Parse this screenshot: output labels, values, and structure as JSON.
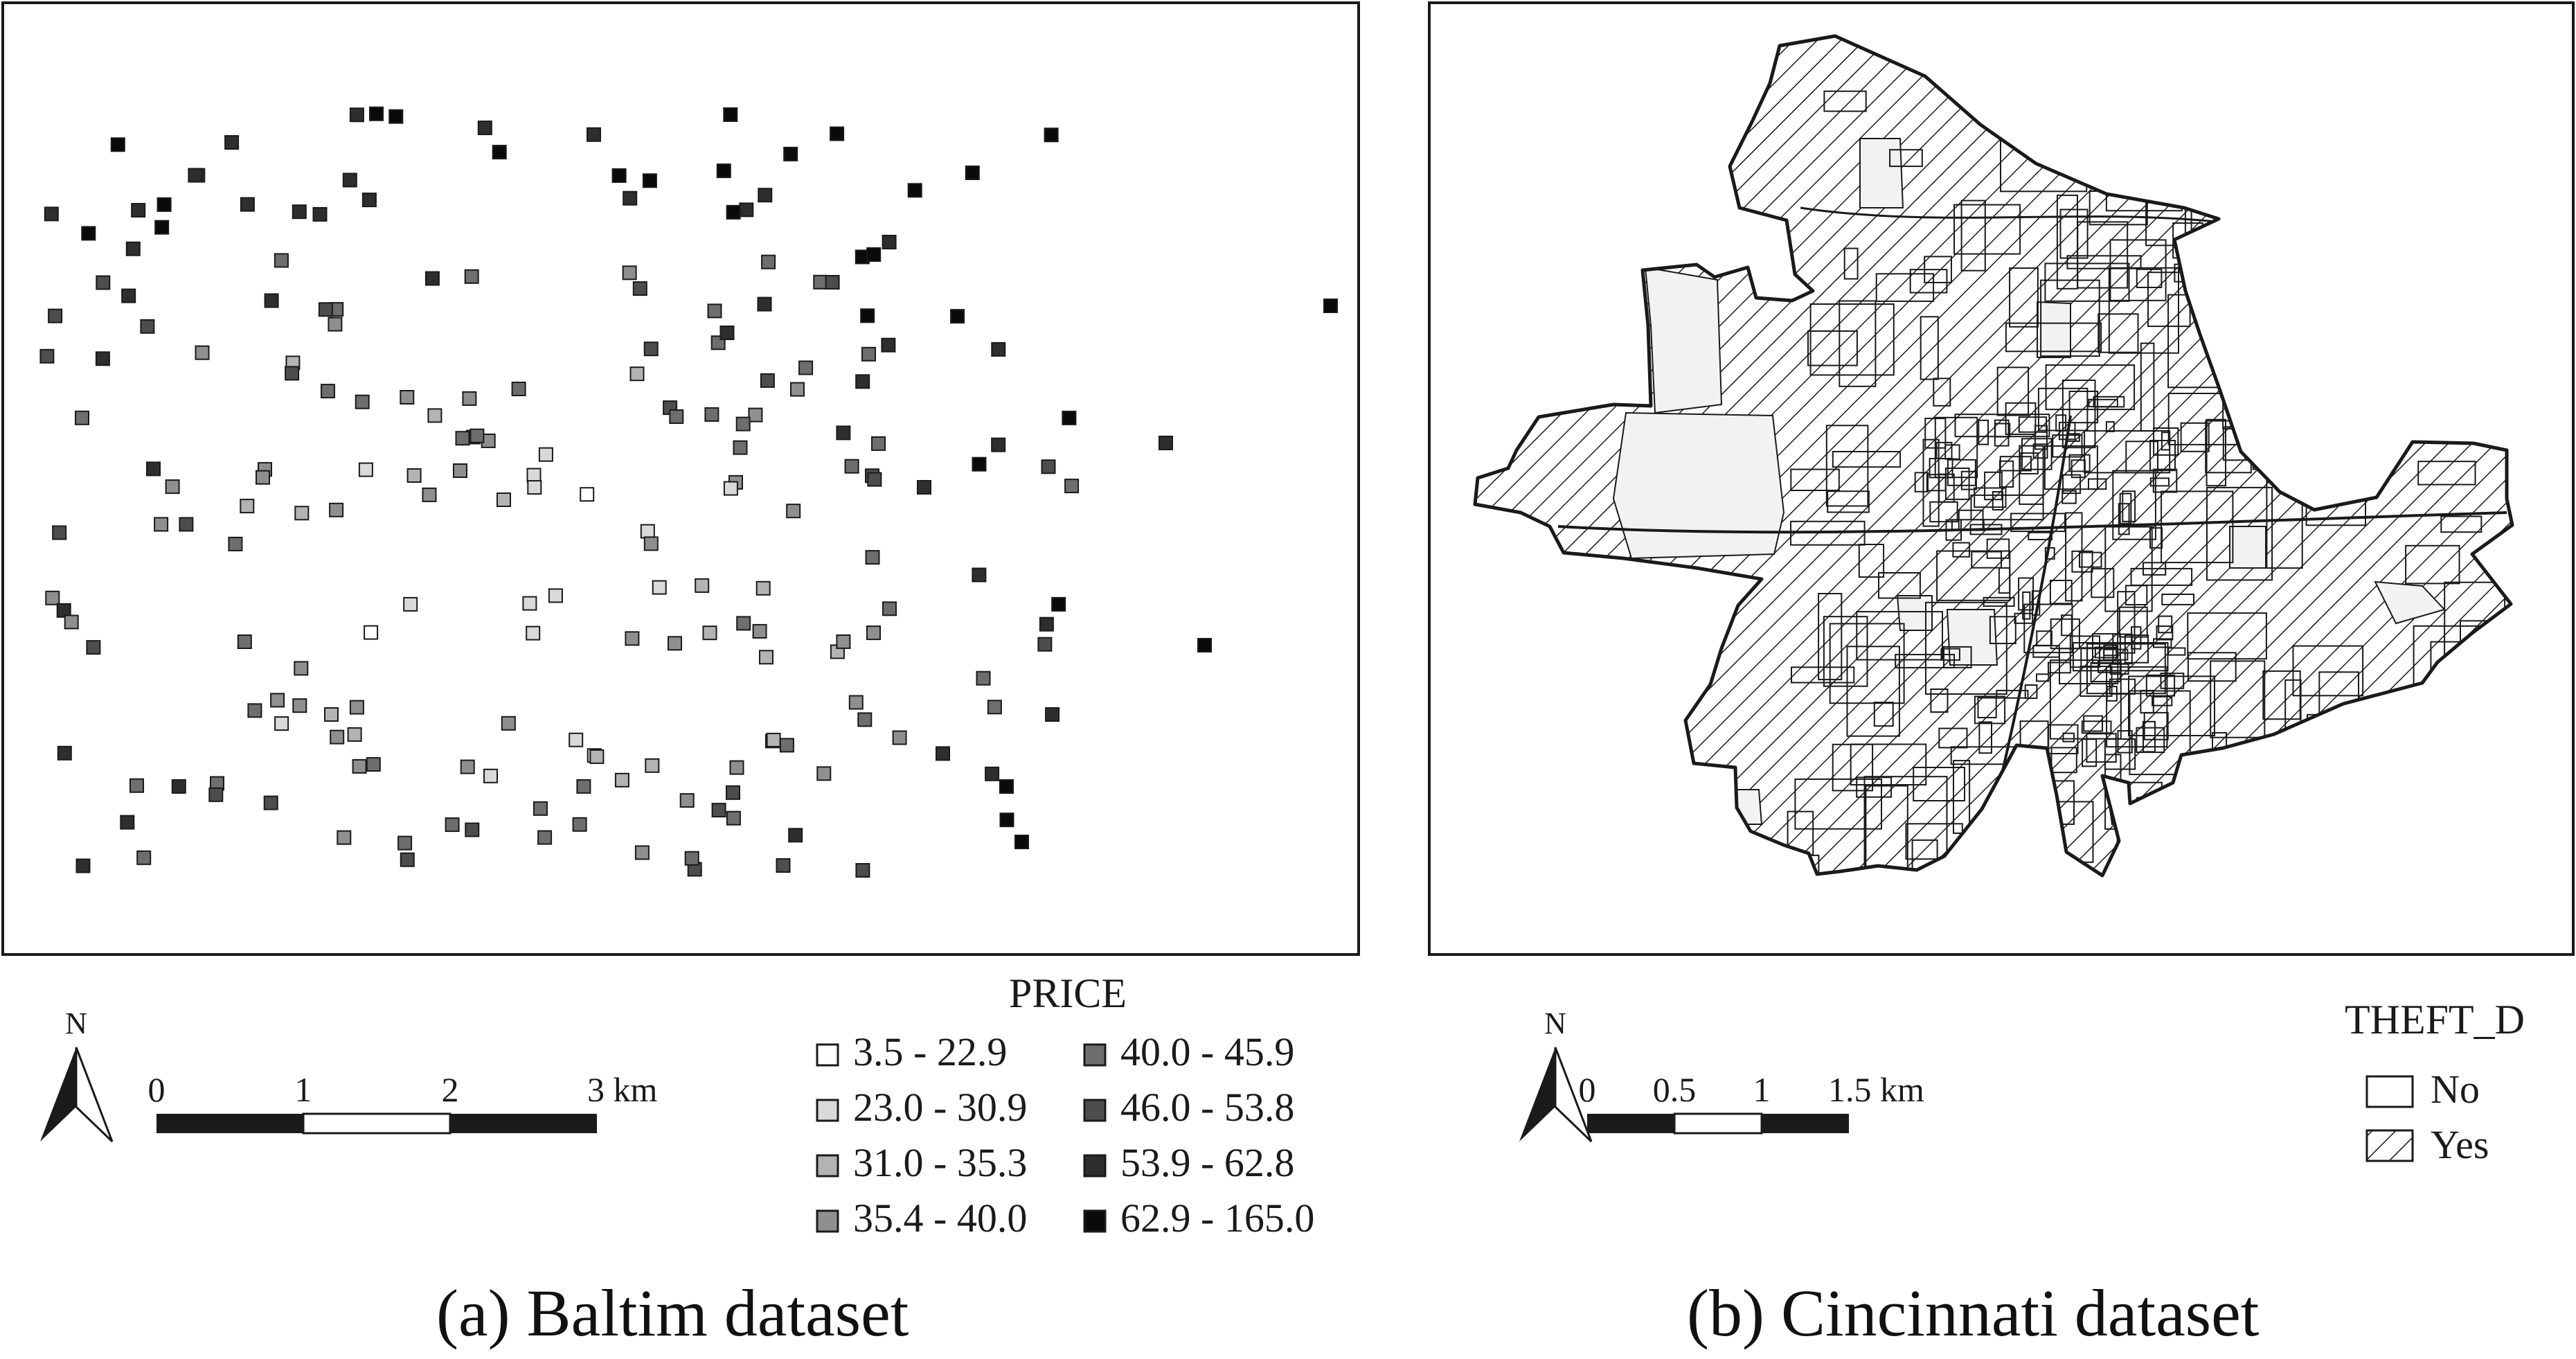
{
  "panel_a": {
    "caption": "(a) Baltim dataset",
    "legend": {
      "title": "PRICE",
      "classes": [
        {
          "label": "3.5 - 22.9",
          "color": "#ffffff"
        },
        {
          "label": "23.0 - 30.9",
          "color": "#d9d9d9"
        },
        {
          "label": "31.0 - 35.3",
          "color": "#b3b3b3"
        },
        {
          "label": "35.4 - 40.0",
          "color": "#8f8f8f"
        },
        {
          "label": "40.0 - 45.9",
          "color": "#6e6e6e"
        },
        {
          "label": "46.0 - 53.8",
          "color": "#4d4d4d"
        },
        {
          "label": "53.9 - 62.8",
          "color": "#2e2e2e"
        },
        {
          "label": "62.9 - 165.0",
          "color": "#0a0a0a"
        }
      ]
    },
    "north_label": "N",
    "scale_bar": {
      "ticks": [
        "0",
        "1",
        "2",
        "3 km"
      ]
    }
  },
  "panel_b": {
    "caption": "(b) Cincinnati dataset",
    "legend": {
      "title": "THEFT_D",
      "classes": [
        {
          "label": "No",
          "fill": "plain"
        },
        {
          "label": "Yes",
          "fill": "hatched"
        }
      ]
    },
    "north_label": "N",
    "scale_bar": {
      "ticks": [
        "0",
        "0.5",
        "1",
        "1.5 km"
      ]
    }
  },
  "colors": {
    "ink": "#1a1a1a",
    "background": "#ffffff",
    "no_fill": "#f2f2f2"
  }
}
